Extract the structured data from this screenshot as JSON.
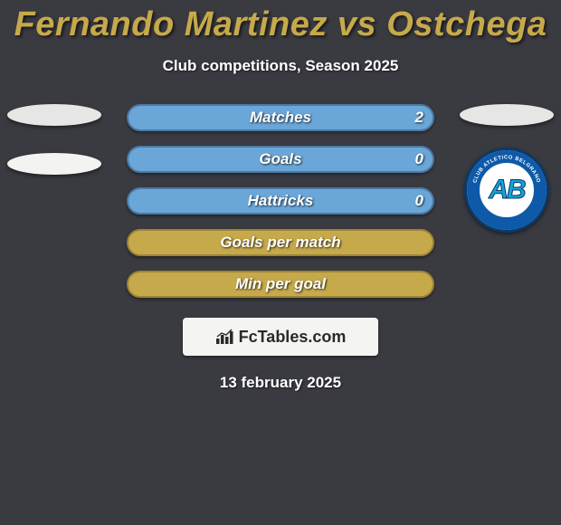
{
  "title": "Fernando Martinez vs Ostchega",
  "subtitle": "Club competitions, Season 2025",
  "date": "13 february 2025",
  "colors": {
    "background": "#3a3a41",
    "title": "#c6a94a",
    "text": "#ffffff",
    "left_fill": "#bcbcbb",
    "right_fill": "#6aa7d8",
    "neutral_fill": "#c6a94a",
    "neutral_border": "#9c8336",
    "logo_bg": "#f4f4f0",
    "ellipse_left": "#e6e6e4",
    "ellipse_right": "#e6e6e4"
  },
  "left_player": {
    "ellipse1_color": "#e6e6e4",
    "ellipse2_color": "#f3f3f1"
  },
  "right_player": {
    "ellipse_color": "#e6e6e4",
    "club_initials": "AB",
    "club_arc_top": "CLUB ATLETICO BELGRANO",
    "club_arc_bottom": "CORDOBA"
  },
  "bars": [
    {
      "label": "Matches",
      "left_value": "",
      "right_value": "2",
      "left_pct": 0,
      "right_pct": 100,
      "left_color": "#bcbcbb",
      "right_color": "#6aa7d8",
      "border_color": "#4a79a6"
    },
    {
      "label": "Goals",
      "left_value": "",
      "right_value": "0",
      "left_pct": 0,
      "right_pct": 100,
      "left_color": "#bcbcbb",
      "right_color": "#6aa7d8",
      "border_color": "#4a79a6"
    },
    {
      "label": "Hattricks",
      "left_value": "",
      "right_value": "0",
      "left_pct": 0,
      "right_pct": 100,
      "left_color": "#bcbcbb",
      "right_color": "#6aa7d8",
      "border_color": "#4a79a6"
    },
    {
      "label": "Goals per match",
      "left_value": "",
      "right_value": "",
      "left_pct": 0,
      "right_pct": 0,
      "left_color": "#c6a94a",
      "right_color": "#c6a94a",
      "border_color": "#9c8336",
      "neutral": true
    },
    {
      "label": "Min per goal",
      "left_value": "",
      "right_value": "",
      "left_pct": 0,
      "right_pct": 0,
      "left_color": "#c6a94a",
      "right_color": "#c6a94a",
      "border_color": "#9c8336",
      "neutral": true
    }
  ],
  "logo": {
    "text": "FcTables.com"
  }
}
